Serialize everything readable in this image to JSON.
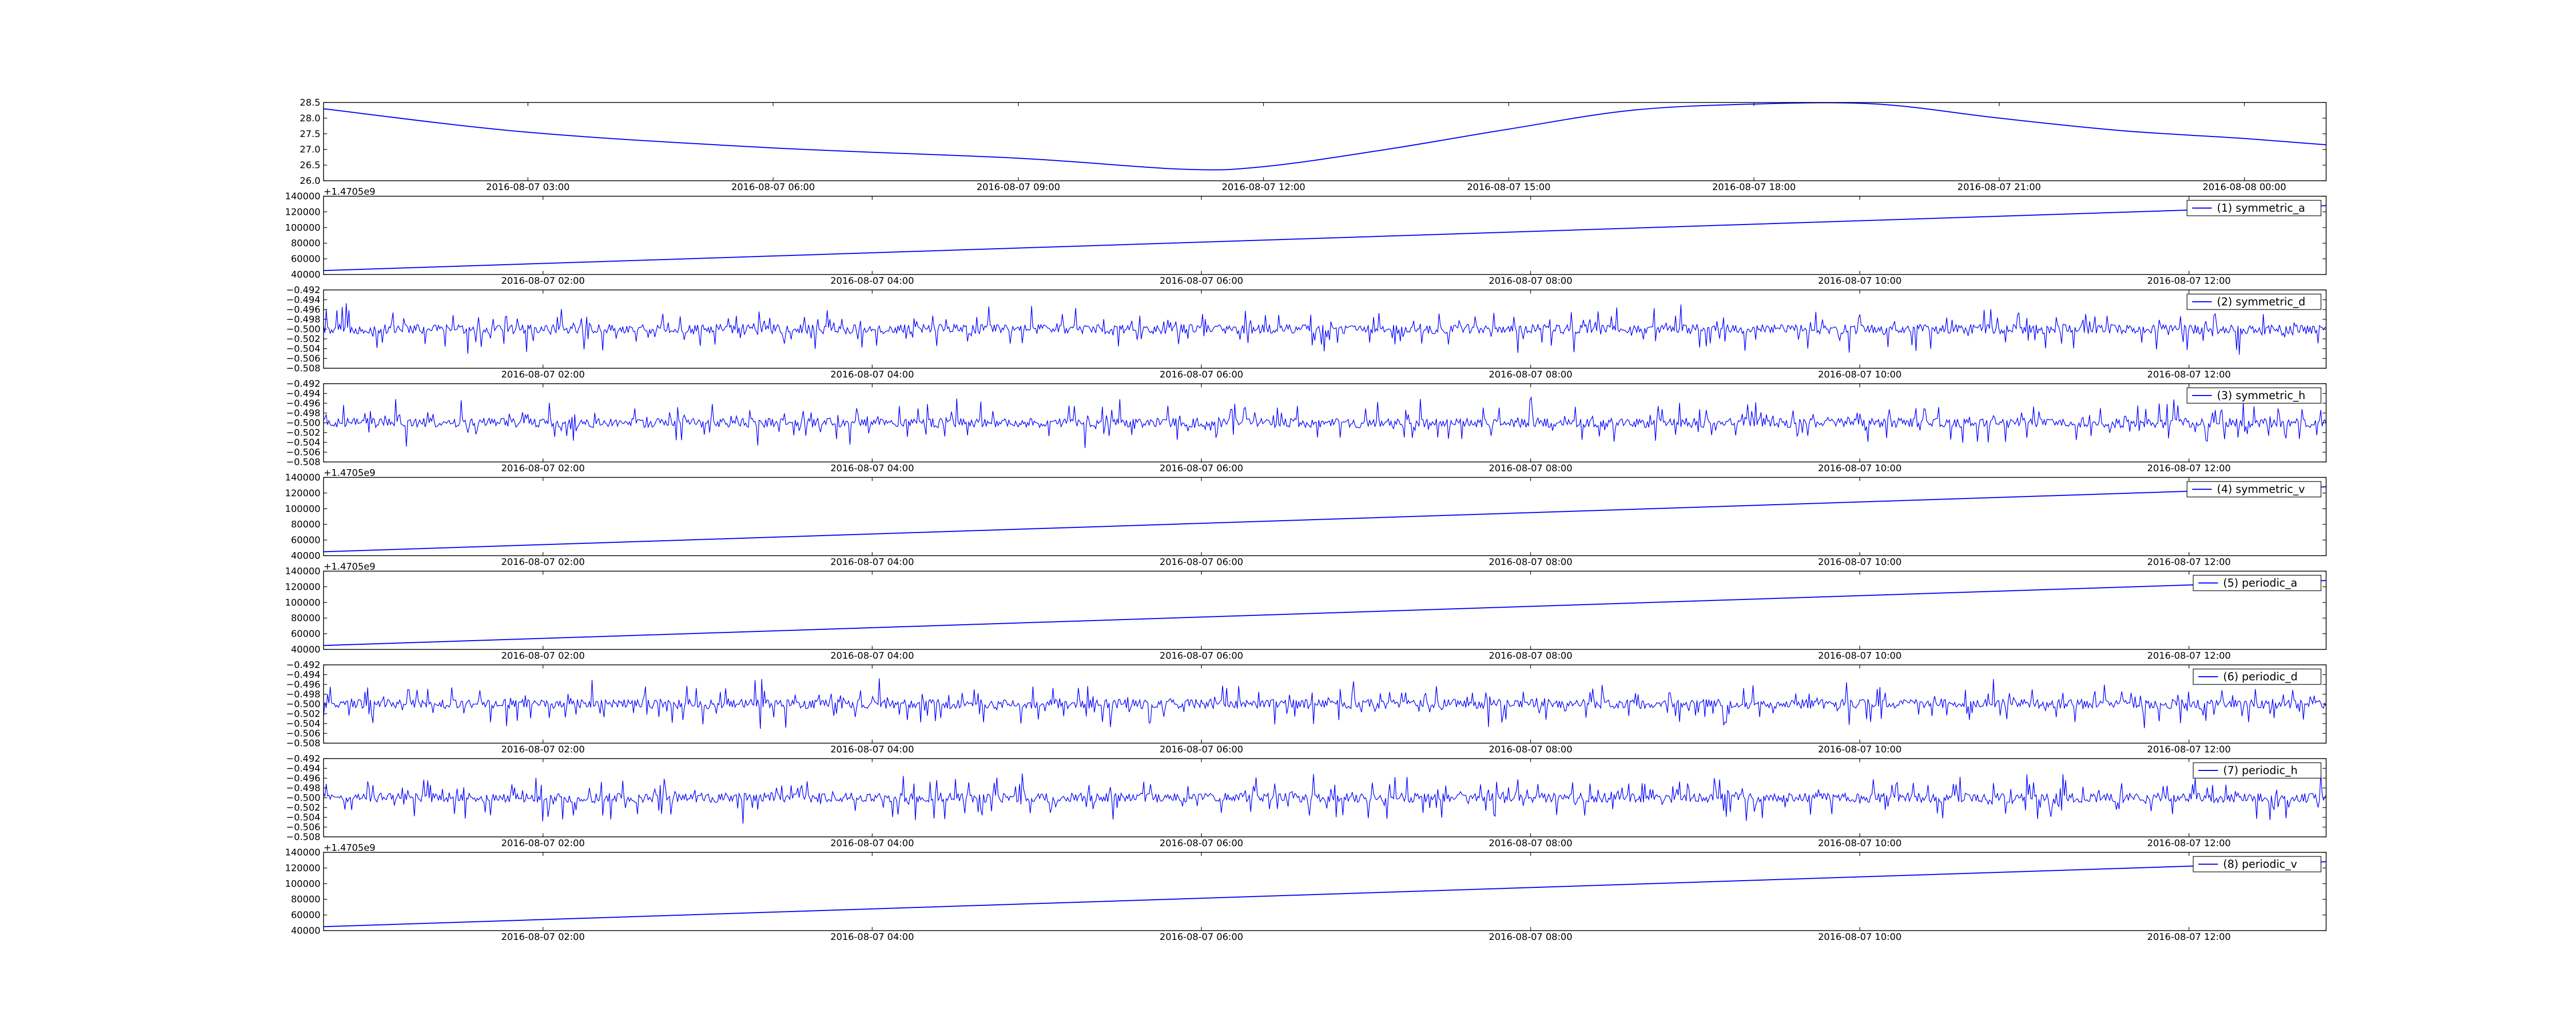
{
  "figure": {
    "background": "#ffffff",
    "line_color": "#0000ff",
    "axes_color": "#000000"
  },
  "chart_data": [
    {
      "type": "line",
      "legend": null,
      "offset_text": "",
      "ylim": [
        26.0,
        28.5
      ],
      "yticks": [
        "26.0",
        "26.5",
        "27.0",
        "27.5",
        "28.0",
        "28.5"
      ],
      "xlim": [
        "2016-08-07 00:30",
        "2016-08-08 01:00"
      ],
      "xticks": [
        "2016-08-07 03:00",
        "2016-08-07 06:00",
        "2016-08-07 09:00",
        "2016-08-07 12:00",
        "2016-08-07 15:00",
        "2016-08-07 18:00",
        "2016-08-07 21:00",
        "2016-08-08 00:00"
      ],
      "x": [
        "2016-08-07 00:30",
        "2016-08-07 03:00",
        "2016-08-07 06:00",
        "2016-08-07 09:00",
        "2016-08-07 11:00",
        "2016-08-07 12:00",
        "2016-08-07 13:30",
        "2016-08-07 15:00",
        "2016-08-07 16:30",
        "2016-08-07 18:00",
        "2016-08-07 19:30",
        "2016-08-07 21:00",
        "2016-08-07 22:30",
        "2016-08-08 00:00",
        "2016-08-08 01:00"
      ],
      "values": [
        28.3,
        27.55,
        27.05,
        26.72,
        26.37,
        26.45,
        27.0,
        27.65,
        28.25,
        28.45,
        28.45,
        28.0,
        27.6,
        27.35,
        27.15
      ]
    },
    {
      "type": "line",
      "legend": "(1) symmetric_a",
      "offset_text": "+1.4705e9",
      "ylim": [
        40000,
        140000
      ],
      "yticks": [
        "40000",
        "60000",
        "80000",
        "100000",
        "120000",
        "140000"
      ],
      "xlim": [
        "2016-08-07 00:40",
        "2016-08-07 12:50"
      ],
      "xticks": [
        "2016-08-07 02:00",
        "2016-08-07 04:00",
        "2016-08-07 06:00",
        "2016-08-07 08:00",
        "2016-08-07 10:00",
        "2016-08-07 12:00"
      ],
      "x": [
        "2016-08-07 00:40",
        "2016-08-07 12:50"
      ],
      "values": [
        45000,
        128000
      ]
    },
    {
      "type": "line",
      "legend": "(2) symmetric_d",
      "offset_text": "",
      "ylim": [
        -0.508,
        -0.492
      ],
      "yticks": [
        "−0.508",
        "−0.506",
        "−0.504",
        "−0.502",
        "−0.500",
        "−0.498",
        "−0.496",
        "−0.494",
        "−0.492"
      ],
      "xlim": [
        "2016-08-07 00:40",
        "2016-08-07 12:50"
      ],
      "xticks": [
        "2016-08-07 02:00",
        "2016-08-07 04:00",
        "2016-08-07 06:00",
        "2016-08-07 08:00",
        "2016-08-07 10:00",
        "2016-08-07 12:00"
      ],
      "noise": {
        "center": -0.5,
        "min": -0.5055,
        "max": -0.4945,
        "samples": 1500
      }
    },
    {
      "type": "line",
      "legend": "(3) symmetric_h",
      "offset_text": "",
      "ylim": [
        -0.508,
        -0.492
      ],
      "yticks": [
        "−0.508",
        "−0.506",
        "−0.504",
        "−0.502",
        "−0.500",
        "−0.498",
        "−0.496",
        "−0.494",
        "−0.492"
      ],
      "xlim": [
        "2016-08-07 00:40",
        "2016-08-07 12:50"
      ],
      "xticks": [
        "2016-08-07 02:00",
        "2016-08-07 04:00",
        "2016-08-07 06:00",
        "2016-08-07 08:00",
        "2016-08-07 10:00",
        "2016-08-07 12:00"
      ],
      "noise": {
        "center": -0.5,
        "min": -0.5055,
        "max": -0.4945,
        "samples": 1500
      }
    },
    {
      "type": "line",
      "legend": "(4) symmetric_v",
      "offset_text": "+1.4705e9",
      "ylim": [
        40000,
        140000
      ],
      "yticks": [
        "40000",
        "60000",
        "80000",
        "100000",
        "120000",
        "140000"
      ],
      "xlim": [
        "2016-08-07 00:40",
        "2016-08-07 12:50"
      ],
      "xticks": [
        "2016-08-07 02:00",
        "2016-08-07 04:00",
        "2016-08-07 06:00",
        "2016-08-07 08:00",
        "2016-08-07 10:00",
        "2016-08-07 12:00"
      ],
      "x": [
        "2016-08-07 00:40",
        "2016-08-07 12:50"
      ],
      "values": [
        45000,
        128000
      ]
    },
    {
      "type": "line",
      "legend": "(5) periodic_a",
      "offset_text": "+1.4705e9",
      "ylim": [
        40000,
        140000
      ],
      "yticks": [
        "40000",
        "60000",
        "80000",
        "100000",
        "120000",
        "140000"
      ],
      "xlim": [
        "2016-08-07 00:40",
        "2016-08-07 12:50"
      ],
      "xticks": [
        "2016-08-07 02:00",
        "2016-08-07 04:00",
        "2016-08-07 06:00",
        "2016-08-07 08:00",
        "2016-08-07 10:00",
        "2016-08-07 12:00"
      ],
      "x": [
        "2016-08-07 00:40",
        "2016-08-07 12:50"
      ],
      "values": [
        45000,
        128000
      ]
    },
    {
      "type": "line",
      "legend": "(6) periodic_d",
      "offset_text": "",
      "ylim": [
        -0.508,
        -0.492
      ],
      "yticks": [
        "−0.508",
        "−0.506",
        "−0.504",
        "−0.502",
        "−0.500",
        "−0.498",
        "−0.496",
        "−0.494",
        "−0.492"
      ],
      "xlim": [
        "2016-08-07 00:40",
        "2016-08-07 12:50"
      ],
      "xticks": [
        "2016-08-07 02:00",
        "2016-08-07 04:00",
        "2016-08-07 06:00",
        "2016-08-07 08:00",
        "2016-08-07 10:00",
        "2016-08-07 12:00"
      ],
      "noise": {
        "center": -0.5,
        "min": -0.5055,
        "max": -0.4945,
        "samples": 1500
      }
    },
    {
      "type": "line",
      "legend": "(7) periodic_h",
      "offset_text": "",
      "ylim": [
        -0.508,
        -0.492
      ],
      "yticks": [
        "−0.508",
        "−0.506",
        "−0.504",
        "−0.502",
        "−0.500",
        "−0.498",
        "−0.496",
        "−0.494",
        "−0.492"
      ],
      "xlim": [
        "2016-08-07 00:40",
        "2016-08-07 12:50"
      ],
      "xticks": [
        "2016-08-07 02:00",
        "2016-08-07 04:00",
        "2016-08-07 06:00",
        "2016-08-07 08:00",
        "2016-08-07 10:00",
        "2016-08-07 12:00"
      ],
      "noise": {
        "center": -0.5,
        "min": -0.5055,
        "max": -0.4945,
        "samples": 1500
      }
    },
    {
      "type": "line",
      "legend": "(8) periodic_v",
      "offset_text": "+1.4705e9",
      "ylim": [
        40000,
        140000
      ],
      "yticks": [
        "40000",
        "60000",
        "80000",
        "100000",
        "120000",
        "140000"
      ],
      "xlim": [
        "2016-08-07 00:40",
        "2016-08-07 12:50"
      ],
      "xticks": [
        "2016-08-07 02:00",
        "2016-08-07 04:00",
        "2016-08-07 06:00",
        "2016-08-07 08:00",
        "2016-08-07 10:00",
        "2016-08-07 12:00"
      ],
      "x": [
        "2016-08-07 00:40",
        "2016-08-07 12:50"
      ],
      "values": [
        45000,
        128000
      ]
    }
  ]
}
